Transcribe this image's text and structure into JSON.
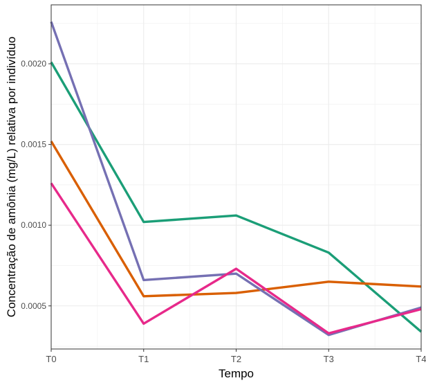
{
  "chart_data": {
    "type": "line",
    "title": "",
    "xlabel": "Tempo",
    "ylabel": "Concentração de amônia (mg/L) relativa por indivíduo",
    "categories": [
      "T0",
      "T1",
      "T2",
      "T3",
      "T4"
    ],
    "y_ticks": [
      0.0005,
      0.001,
      0.0015,
      0.002
    ],
    "y_tick_labels": [
      "0.0005",
      "0.0010",
      "0.0015",
      "0.0020"
    ],
    "ylim": [
      0.000233,
      0.002365
    ],
    "grid": true,
    "legend": "none",
    "series": [
      {
        "color": "#1b9e77",
        "values": [
          0.00201,
          0.00102,
          0.00106,
          0.00083,
          0.00034
        ]
      },
      {
        "color": "#d95f02",
        "values": [
          0.00152,
          0.00056,
          0.00058,
          0.00065,
          0.00062
        ]
      },
      {
        "color": "#7570b3",
        "values": [
          0.00226,
          0.00066,
          0.0007,
          0.00032,
          0.00049
        ]
      },
      {
        "color": "#e7298a",
        "values": [
          0.00126,
          0.00039,
          0.00073,
          0.00033,
          0.00048
        ]
      }
    ]
  }
}
